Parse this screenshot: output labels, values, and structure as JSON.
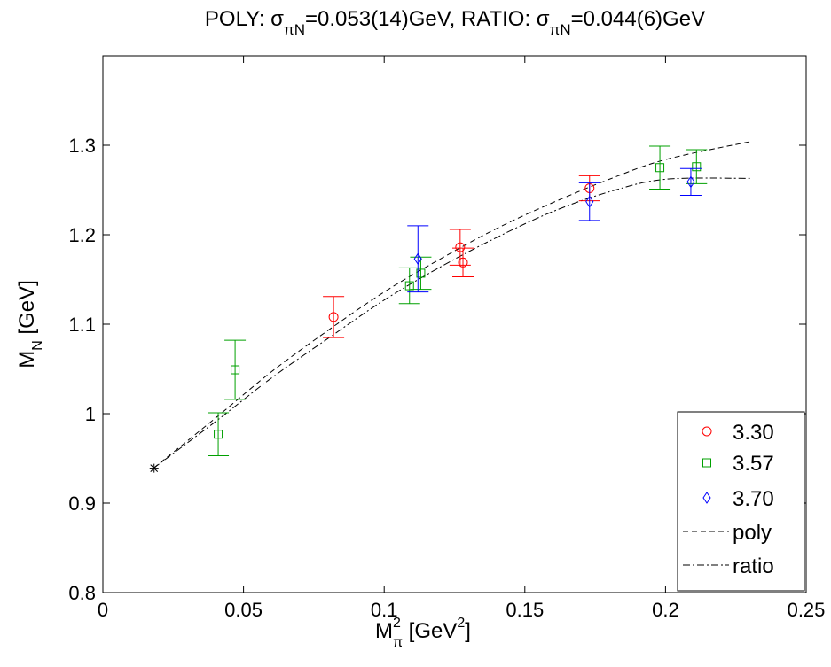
{
  "chart_data": {
    "type": "scatter",
    "title": {
      "part1": "POLY: σ",
      "sub1": "πN",
      "part2": "=0.053(14)GeV, RATIO: σ",
      "sub2": "πN",
      "part3": "=0.044(6)GeV"
    },
    "xlabel": {
      "main": "M",
      "sub": "π",
      "sup": "2",
      "rest": " [GeV",
      "rest_sup": "2",
      "close": "]"
    },
    "ylabel": {
      "main": "M",
      "sub": "N",
      "rest": " [GeV]"
    },
    "xlim": [
      0,
      0.25
    ],
    "ylim": [
      0.8,
      1.4
    ],
    "xticks": [
      0,
      0.05,
      0.1,
      0.15,
      0.2,
      0.25
    ],
    "xtick_labels": [
      "0",
      "0.05",
      "0.1",
      "0.15",
      "0.2",
      "0.25"
    ],
    "yticks": [
      0.8,
      0.9,
      1.0,
      1.1,
      1.2,
      1.3
    ],
    "ytick_labels": [
      "0.8",
      "0.9",
      "1",
      "1.1",
      "1.2",
      "1.3"
    ],
    "grid": false,
    "legend_position": "bottom-right",
    "series": [
      {
        "name": "3.30",
        "marker": "circle",
        "color": "#ff0000",
        "points": [
          {
            "x": 0.082,
            "y": 1.108,
            "err": 0.023
          },
          {
            "x": 0.127,
            "y": 1.186,
            "err": 0.02
          },
          {
            "x": 0.128,
            "y": 1.169,
            "err": 0.016
          },
          {
            "x": 0.173,
            "y": 1.252,
            "err": 0.014
          }
        ]
      },
      {
        "name": "3.57",
        "marker": "square",
        "color": "#00a000",
        "points": [
          {
            "x": 0.041,
            "y": 0.977,
            "err": 0.024
          },
          {
            "x": 0.047,
            "y": 1.049,
            "err": 0.033
          },
          {
            "x": 0.109,
            "y": 1.143,
            "err": 0.02
          },
          {
            "x": 0.113,
            "y": 1.157,
            "err": 0.018
          },
          {
            "x": 0.198,
            "y": 1.275,
            "err": 0.024
          },
          {
            "x": 0.211,
            "y": 1.276,
            "err": 0.019
          }
        ]
      },
      {
        "name": "3.70",
        "marker": "diamond",
        "color": "#0000ff",
        "points": [
          {
            "x": 0.112,
            "y": 1.173,
            "err": 0.037
          },
          {
            "x": 0.173,
            "y": 1.237,
            "err": 0.021
          },
          {
            "x": 0.209,
            "y": 1.259,
            "err": 0.015
          }
        ]
      }
    ],
    "physical_point": {
      "x": 0.0182,
      "y": 0.939,
      "marker": "asterisk",
      "color": "#000000"
    },
    "curves": [
      {
        "name": "poly",
        "style": "dashed",
        "color": "#000000",
        "x": [
          0.018,
          0.04,
          0.06,
          0.08,
          0.1,
          0.12,
          0.14,
          0.16,
          0.18,
          0.2,
          0.23
        ],
        "y": [
          0.939,
          0.995,
          1.047,
          1.093,
          1.136,
          1.173,
          1.207,
          1.236,
          1.262,
          1.284,
          1.304
        ]
      },
      {
        "name": "ratio",
        "style": "dashdot",
        "color": "#000000",
        "x": [
          0.018,
          0.04,
          0.06,
          0.08,
          0.1,
          0.12,
          0.14,
          0.16,
          0.18,
          0.2,
          0.23
        ],
        "y": [
          0.939,
          0.991,
          1.04,
          1.084,
          1.127,
          1.164,
          1.197,
          1.226,
          1.248,
          1.262,
          1.263
        ]
      }
    ]
  }
}
